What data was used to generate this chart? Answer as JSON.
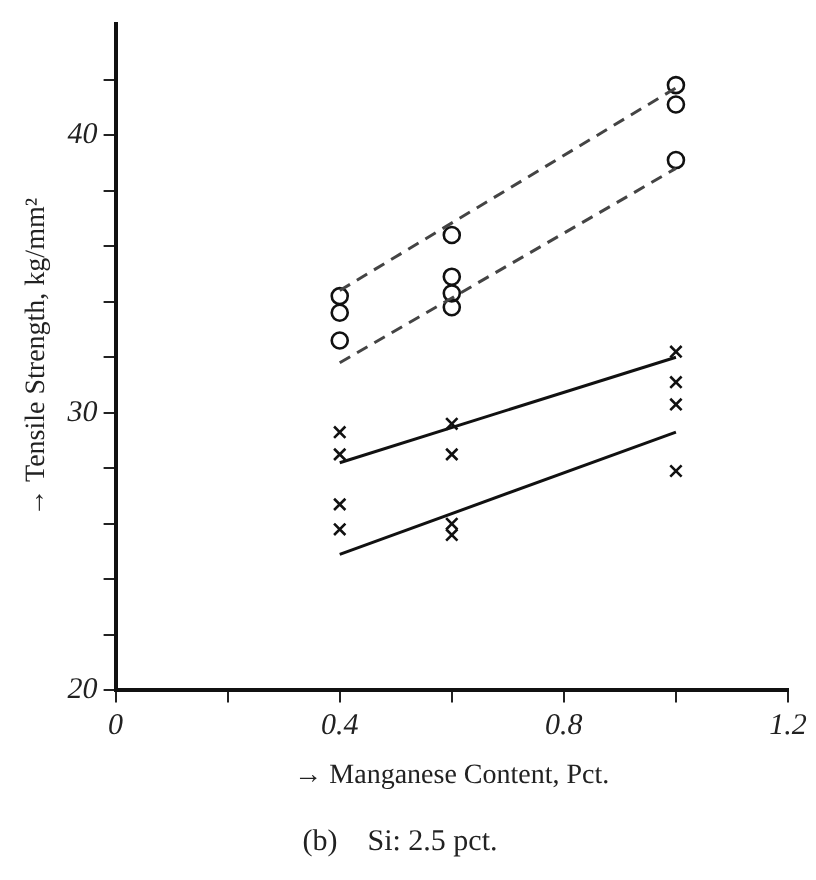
{
  "chart_data": {
    "type": "scatter",
    "title": "(b)    Si: 2.5 pct.",
    "xlabel": "→ Manganese Content, Pct.",
    "ylabel": "→ Tensile Strength, kg/mm²",
    "xlim": [
      0,
      1.2
    ],
    "ylim": [
      20,
      44
    ],
    "xticks": [
      0,
      {
        "value": 0.2,
        "label": null
      },
      0.4,
      {
        "value": 0.6,
        "label": null
      },
      0.8,
      {
        "value": 1.0,
        "label": null
      },
      1.2
    ],
    "yticks": [
      20,
      {
        "value": 22,
        "label": null
      },
      {
        "value": 24,
        "label": null
      },
      {
        "value": 26,
        "label": null
      },
      {
        "value": 28,
        "label": null
      },
      30,
      {
        "value": 32,
        "label": null
      },
      {
        "value": 34,
        "label": null
      },
      {
        "value": 36,
        "label": null
      },
      {
        "value": 38,
        "label": null
      },
      40,
      {
        "value": 42,
        "label": null
      }
    ],
    "grid": false,
    "legend": false,
    "series": [
      {
        "type": "line",
        "color": "#444444",
        "line_style": "dashed",
        "x": [
          0.4,
          1.0
        ],
        "values": [
          34.4,
          41.7
        ]
      },
      {
        "type": "line",
        "color": "#444444",
        "line_style": "dashed",
        "x": [
          0.4,
          1.0
        ],
        "values": [
          31.8,
          38.8
        ]
      },
      {
        "type": "line",
        "color": "#111111",
        "line_style": "solid",
        "x": [
          0.4,
          1.0
        ],
        "values": [
          28.2,
          32.0
        ]
      },
      {
        "type": "line",
        "color": "#111111",
        "line_style": "solid",
        "x": [
          0.4,
          1.0
        ],
        "values": [
          24.9,
          29.3
        ]
      },
      {
        "color": "#111111",
        "marker": "circle",
        "x": [
          0.4,
          0.4,
          0.4,
          0.6,
          0.6,
          0.6,
          0.6,
          1.0,
          1.0,
          1.0
        ],
        "values": [
          34.2,
          33.6,
          32.6,
          36.4,
          34.9,
          34.3,
          33.8,
          41.8,
          41.1,
          39.1
        ]
      },
      {
        "color": "#111111",
        "marker": "cross",
        "x": [
          0.4,
          0.4,
          0.4,
          0.4,
          0.6,
          0.6,
          0.6,
          0.6,
          1.0,
          1.0,
          1.0,
          1.0
        ],
        "values": [
          29.3,
          28.5,
          26.7,
          25.8,
          29.6,
          28.5,
          26.0,
          25.6,
          32.2,
          31.1,
          30.3,
          27.9
        ]
      }
    ]
  }
}
